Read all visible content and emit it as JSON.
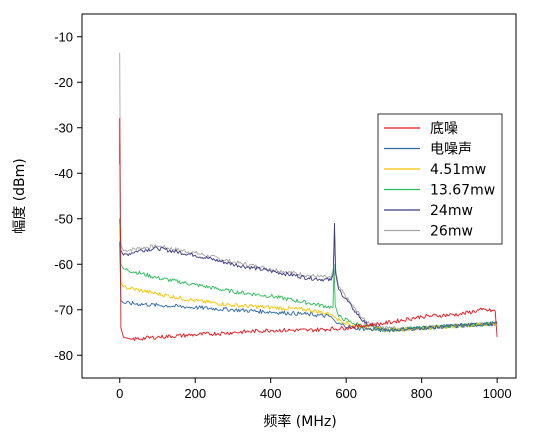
{
  "chart_data": {
    "type": "line",
    "title": "",
    "xlabel": "频率 (MHz)",
    "ylabel": "幅度 (dBm)",
    "xlim": [
      -100,
      1050
    ],
    "ylim": [
      -85,
      -5
    ],
    "xticks": [
      0,
      200,
      400,
      600,
      800,
      1000
    ],
    "yticks": [
      -10,
      -20,
      -30,
      -40,
      -50,
      -60,
      -70,
      -80
    ],
    "grid": false,
    "legend_position": "right",
    "series": [
      {
        "name": "底噪",
        "color": "#e8121a",
        "points": [
          [
            0,
            -38
          ],
          [
            0,
            -28
          ],
          [
            3,
            -74
          ],
          [
            10,
            -76
          ],
          [
            30,
            -76.5
          ],
          [
            100,
            -76
          ],
          [
            200,
            -75.5
          ],
          [
            300,
            -75
          ],
          [
            400,
            -74.5
          ],
          [
            500,
            -74.5
          ],
          [
            600,
            -74
          ],
          [
            640,
            -73.5
          ],
          [
            700,
            -73
          ],
          [
            800,
            -71.5
          ],
          [
            900,
            -71
          ],
          [
            960,
            -70
          ],
          [
            995,
            -70.3
          ],
          [
            1000,
            -76
          ]
        ]
      },
      {
        "name": "电噪声",
        "color": "#2d67a8",
        "points": [
          [
            0,
            -55
          ],
          [
            3,
            -68
          ],
          [
            10,
            -68.5
          ],
          [
            100,
            -69
          ],
          [
            200,
            -69.5
          ],
          [
            300,
            -70
          ],
          [
            400,
            -70.5
          ],
          [
            500,
            -71
          ],
          [
            560,
            -71.5
          ],
          [
            575,
            -73
          ],
          [
            620,
            -74
          ],
          [
            700,
            -74.5
          ],
          [
            800,
            -74
          ],
          [
            900,
            -73.5
          ],
          [
            1000,
            -73
          ]
        ]
      },
      {
        "name": "4.51mw",
        "color": "#f5c400",
        "points": [
          [
            0,
            -52
          ],
          [
            3,
            -64
          ],
          [
            10,
            -65
          ],
          [
            100,
            -66.5
          ],
          [
            200,
            -68
          ],
          [
            300,
            -69
          ],
          [
            400,
            -69.5
          ],
          [
            500,
            -70
          ],
          [
            560,
            -71
          ],
          [
            575,
            -72
          ],
          [
            620,
            -73.5
          ],
          [
            700,
            -74.5
          ],
          [
            800,
            -74
          ],
          [
            900,
            -73.5
          ],
          [
            1000,
            -73
          ]
        ]
      },
      {
        "name": "13.67mw",
        "color": "#2ebd5a",
        "points": [
          [
            0,
            -50
          ],
          [
            3,
            -60
          ],
          [
            10,
            -61
          ],
          [
            100,
            -63
          ],
          [
            200,
            -64.5
          ],
          [
            300,
            -66
          ],
          [
            400,
            -67
          ],
          [
            500,
            -68.5
          ],
          [
            565,
            -69.5
          ],
          [
            568,
            -60
          ],
          [
            571,
            -69
          ],
          [
            580,
            -71.5
          ],
          [
            620,
            -73
          ],
          [
            700,
            -74.5
          ],
          [
            800,
            -74
          ],
          [
            900,
            -73.5
          ],
          [
            1000,
            -73
          ]
        ]
      },
      {
        "name": "24mw",
        "color": "#3e3a84",
        "points": [
          [
            0,
            -50
          ],
          [
            3,
            -57
          ],
          [
            10,
            -58
          ],
          [
            50,
            -57
          ],
          [
            100,
            -56.5
          ],
          [
            200,
            -58
          ],
          [
            300,
            -60
          ],
          [
            400,
            -61.5
          ],
          [
            500,
            -63
          ],
          [
            560,
            -63.5
          ],
          [
            566,
            -62
          ],
          [
            569,
            -51
          ],
          [
            572,
            -62
          ],
          [
            580,
            -65.5
          ],
          [
            620,
            -70
          ],
          [
            650,
            -73
          ],
          [
            700,
            -74.5
          ],
          [
            800,
            -74
          ],
          [
            900,
            -73.5
          ],
          [
            1000,
            -73
          ]
        ]
      },
      {
        "name": "26mw",
        "color": "#a6a6a6",
        "points": [
          [
            0,
            -13.5
          ],
          [
            2,
            -50
          ],
          [
            4,
            -56
          ],
          [
            10,
            -57
          ],
          [
            50,
            -56.5
          ],
          [
            100,
            -56
          ],
          [
            200,
            -57.5
          ],
          [
            300,
            -59.5
          ],
          [
            400,
            -61
          ],
          [
            500,
            -62.5
          ],
          [
            560,
            -63
          ],
          [
            566,
            -61
          ],
          [
            569,
            -53
          ],
          [
            572,
            -61
          ],
          [
            580,
            -65
          ],
          [
            620,
            -69.5
          ],
          [
            650,
            -72.5
          ],
          [
            700,
            -74
          ],
          [
            800,
            -74
          ],
          [
            900,
            -73.5
          ],
          [
            1000,
            -73
          ]
        ]
      }
    ]
  }
}
